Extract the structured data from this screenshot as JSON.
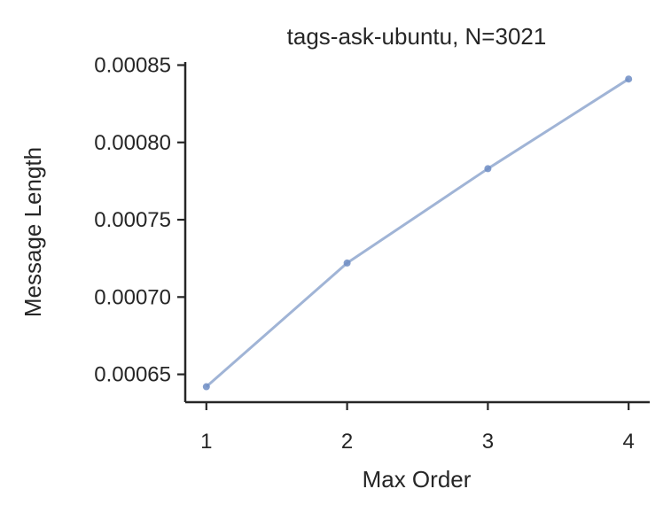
{
  "chart_data": {
    "type": "line",
    "title": "tags-ask-ubuntu, N=3021",
    "xlabel": "Max Order",
    "ylabel": "Message Length",
    "x": [
      1,
      2,
      3,
      4
    ],
    "series": [
      {
        "values": [
          0.000642,
          0.000722,
          0.000783,
          0.000841
        ]
      }
    ],
    "xlim": [
      0.85,
      4.15
    ],
    "ylim": [
      0.000632,
      0.000852
    ],
    "xticks": [
      "1",
      "2",
      "3",
      "4"
    ],
    "xtick_values": [
      1,
      2,
      3,
      4
    ],
    "yticks": [
      "0.00065",
      "0.00070",
      "0.00075",
      "0.00080",
      "0.00085"
    ],
    "ytick_values": [
      0.00065,
      0.0007,
      0.00075,
      0.0008,
      0.00085
    ],
    "grid": false,
    "line_color": "#a0b4d6",
    "marker_color": "#6f8dc4",
    "axis_color": "#262626"
  }
}
